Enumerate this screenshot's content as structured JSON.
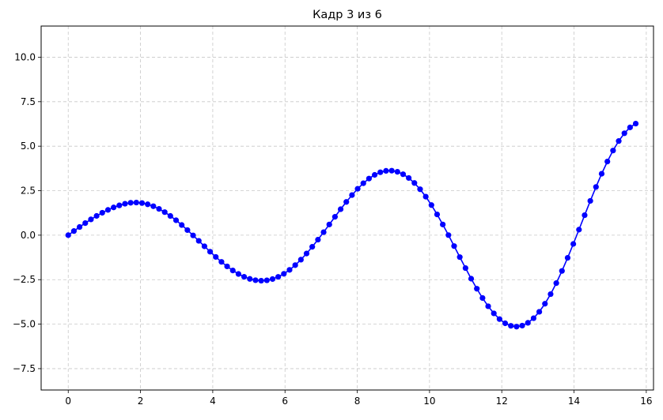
{
  "chart_data": {
    "type": "line",
    "title": "Кадр 3 из 6",
    "xlabel": "",
    "ylabel": "",
    "xlim": [
      -0.75,
      16.2
    ],
    "ylim": [
      -8.7,
      11.75
    ],
    "xticks": [
      0,
      2,
      4,
      6,
      8,
      10,
      12,
      14,
      16
    ],
    "yticks": [
      -7.5,
      -5.0,
      -2.5,
      0.0,
      2.5,
      5.0,
      7.5,
      10.0
    ],
    "xtick_labels": [
      "0",
      "2",
      "4",
      "6",
      "8",
      "10",
      "12",
      "14",
      "16"
    ],
    "ytick_labels": [
      "−7.5",
      "−5.0",
      "−2.5",
      "0.0",
      "2.5",
      "5.0",
      "7.5",
      "10.0"
    ],
    "grid": true,
    "grid_style": "dashed",
    "series": [
      {
        "color": "#0000ff",
        "marker": "circle",
        "x": [
          0,
          0.157,
          0.314,
          0.471,
          0.628,
          0.785,
          0.942,
          1.1,
          1.257,
          1.414,
          1.571,
          1.728,
          1.885,
          2.042,
          2.199,
          2.356,
          2.513,
          2.67,
          2.827,
          2.985,
          3.142,
          3.299,
          3.456,
          3.613,
          3.77,
          3.927,
          4.084,
          4.241,
          4.398,
          4.555,
          4.712,
          4.869,
          5.027,
          5.184,
          5.341,
          5.498,
          5.655,
          5.812,
          5.969,
          6.126,
          6.283,
          6.44,
          6.597,
          6.754,
          6.912,
          7.069,
          7.226,
          7.383,
          7.54,
          7.697,
          7.854,
          8.011,
          8.168,
          8.325,
          8.482,
          8.639,
          8.796,
          8.954,
          9.111,
          9.268,
          9.425,
          9.582,
          9.739,
          9.896,
          10.053,
          10.21,
          10.367,
          10.524,
          10.681,
          10.838,
          10.996,
          11.153,
          11.31,
          11.467,
          11.624,
          11.781,
          11.938,
          12.095,
          12.252,
          12.409,
          12.566,
          12.723,
          12.881,
          13.038,
          13.195,
          13.352,
          13.509,
          13.666,
          13.823,
          13.98,
          14.137,
          14.294,
          14.451,
          14.608,
          14.765,
          14.923,
          15.08,
          15.237,
          15.394,
          15.551,
          15.708
        ],
        "y": [
          0,
          0.232,
          0.459,
          0.678,
          0.886,
          1.081,
          1.26,
          1.419,
          1.558,
          1.673,
          1.766,
          1.82,
          1.833,
          1.805,
          1.735,
          1.626,
          1.478,
          1.295,
          1.08,
          0.837,
          0.57,
          0.285,
          -0.013,
          -0.318,
          -0.625,
          -0.929,
          -1.222,
          -1.5,
          -1.756,
          -1.984,
          -2.18,
          -2.339,
          -2.457,
          -2.531,
          -2.558,
          -2.536,
          -2.464,
          -2.342,
          -2.17,
          -1.95,
          -1.684,
          -1.376,
          -1.031,
          -0.654,
          -0.251,
          0.169,
          0.6,
          1.032,
          1.458,
          1.868,
          2.253,
          2.606,
          2.917,
          3.18,
          3.388,
          3.534,
          3.614,
          3.624,
          3.561,
          3.425,
          3.214,
          2.932,
          2.58,
          2.164,
          1.69,
          1.166,
          0.6,
          0.004,
          -0.612,
          -1.233,
          -1.848,
          -2.445,
          -3.01,
          -3.531,
          -3.996,
          -4.394,
          -4.715,
          -4.951,
          -5.094,
          -5.139,
          -5.083,
          -4.925,
          -4.665,
          -4.306,
          -3.853,
          -3.313,
          -2.695,
          -2.011,
          -1.272,
          -0.493,
          0.311,
          1.123,
          1.928,
          2.709,
          3.451,
          4.138,
          4.755,
          5.289,
          5.726,
          6.056,
          6.269
        ]
      }
    ]
  }
}
